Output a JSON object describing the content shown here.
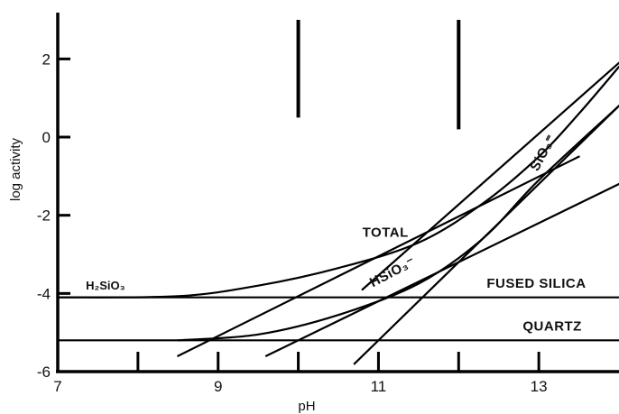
{
  "chart_data": {
    "type": "line",
    "title": "",
    "xlabel": "pH",
    "ylabel": "log activity",
    "xlim": [
      7,
      14
    ],
    "ylim": [
      -6,
      3
    ],
    "x_ticks": [
      7,
      9,
      11,
      13
    ],
    "x_minor_ticks": [
      8,
      10,
      12
    ],
    "y_ticks": [
      -6,
      -4,
      -2,
      0,
      2
    ],
    "grid": false,
    "series": [
      {
        "name": "TOTAL",
        "points": [
          [
            7,
            -4.1
          ],
          [
            8.5,
            -4.07
          ],
          [
            9.5,
            -3.8
          ],
          [
            10.5,
            -3.35
          ],
          [
            11.5,
            -2.7
          ],
          [
            12.3,
            -1.7
          ],
          [
            13,
            -0.5
          ],
          [
            13.5,
            0.6
          ],
          [
            14,
            1.8
          ]
        ]
      },
      {
        "name": "H2SiO3 (FUSED SILICA)",
        "points": [
          [
            7,
            -4.1
          ],
          [
            14,
            -4.1
          ]
        ]
      },
      {
        "name": "H2SiO3 (QUARTZ)",
        "points": [
          [
            7,
            -5.2
          ],
          [
            14,
            -5.2
          ]
        ]
      },
      {
        "name": "HSiO3- upper",
        "points": [
          [
            8.5,
            -5.6
          ],
          [
            13.5,
            -0.5
          ]
        ]
      },
      {
        "name": "HSiO3- lower",
        "points": [
          [
            8.5,
            -5.2
          ],
          [
            9.5,
            -5.05
          ],
          [
            10.5,
            -4.55
          ],
          [
            11.5,
            -3.75
          ],
          [
            12.3,
            -2.6
          ],
          [
            13,
            -1.1
          ],
          [
            14,
            0.8
          ]
        ]
      },
      {
        "name": "SiO3= upper",
        "points": [
          [
            10.8,
            -3.9
          ],
          [
            14,
            1.9
          ]
        ]
      },
      {
        "name": "SiO3= lower",
        "points": [
          [
            9.6,
            -5.6
          ],
          [
            14,
            -1.2
          ]
        ]
      },
      {
        "name": "SiO3= steep",
        "points": [
          [
            10.7,
            -5.8
          ],
          [
            14,
            0.8
          ]
        ]
      }
    ],
    "vertical_bars": [
      {
        "x": 10,
        "y_from": 0.5,
        "y_to": 3.0
      },
      {
        "x": 12,
        "y_from": 0.2,
        "y_to": 3.0
      }
    ],
    "annotations": [
      {
        "text": "TOTAL",
        "x": 10.8,
        "y": -2.55,
        "style": "label"
      },
      {
        "text": "FUSED SILICA",
        "x": 12.35,
        "y": -3.85,
        "style": "label"
      },
      {
        "text": "QUARTZ",
        "x": 12.8,
        "y": -4.95,
        "style": "label"
      },
      {
        "text": "H₂SiO₃",
        "x": 7.35,
        "y": -3.9,
        "style": "small"
      },
      {
        "text": "HSiO₃⁻",
        "x": 11.2,
        "y": -3.55,
        "style": "rot",
        "angle": -28
      },
      {
        "text": "SiO₃⁼",
        "x": 13.1,
        "y": -0.45,
        "style": "rot",
        "angle": -62
      }
    ]
  }
}
